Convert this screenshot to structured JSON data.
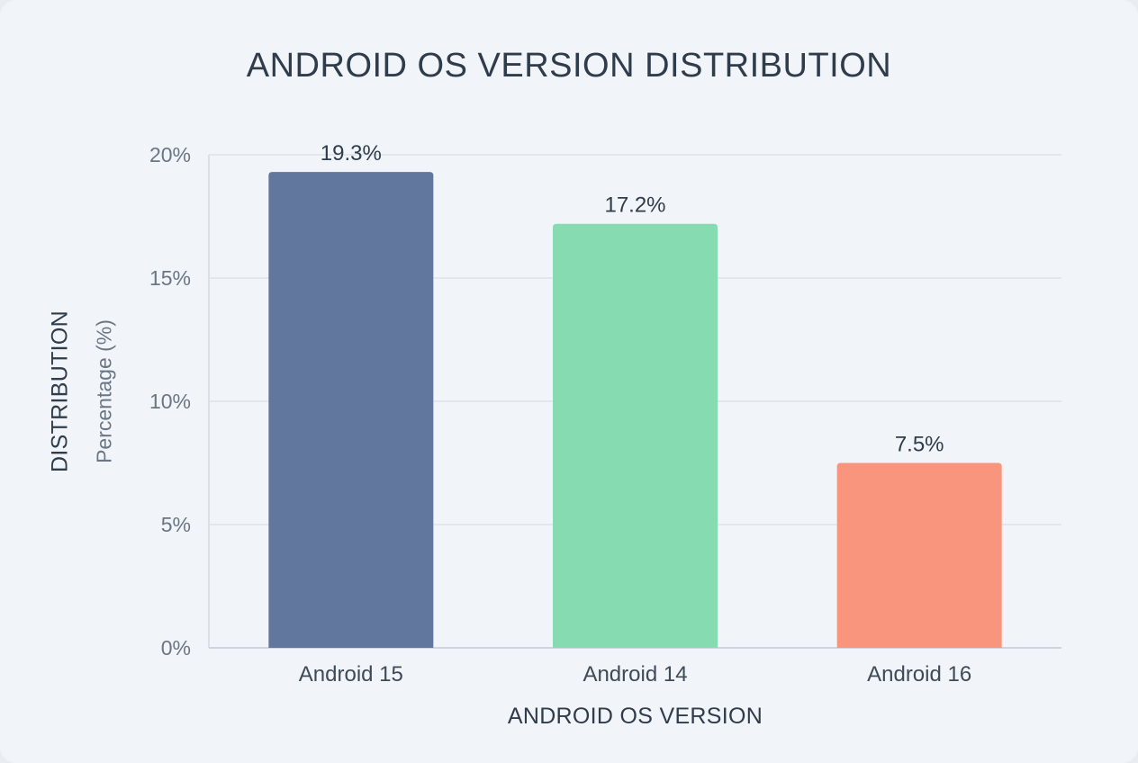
{
  "chart_data": {
    "type": "bar",
    "title": "ANDROID OS VERSION DISTRIBUTION",
    "xlabel": "ANDROID OS VERSION",
    "ylabel": "DISTRIBUTION",
    "ylabel_sub": "Percentage (%)",
    "categories": [
      "Android 15",
      "Android 14",
      "Android 16"
    ],
    "values": [
      19.3,
      17.2,
      7.5
    ],
    "value_labels": [
      "19.3%",
      "17.2%",
      "7.5%"
    ],
    "colors": [
      "#62779d",
      "#86dbb0",
      "#f9957d"
    ],
    "ylim": [
      0,
      20
    ],
    "yticks": [
      0,
      5,
      10,
      15,
      20
    ],
    "ytick_labels": [
      "0%",
      "5%",
      "10%",
      "15%",
      "20%"
    ],
    "grid": true,
    "legend": "none"
  }
}
